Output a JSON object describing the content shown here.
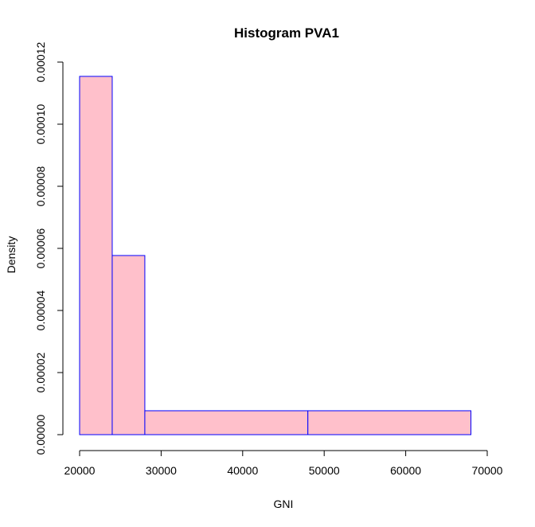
{
  "chart_data": {
    "type": "bar",
    "title": "Histogram PVA1",
    "xlabel": "GNI",
    "ylabel": "Density",
    "xlim": [
      20000,
      70000
    ],
    "ylim": [
      0,
      0.00012
    ],
    "x_ticks": [
      20000,
      30000,
      40000,
      50000,
      60000,
      70000
    ],
    "x_tick_labels": [
      "20000",
      "30000",
      "40000",
      "50000",
      "60000",
      "70000"
    ],
    "y_ticks": [
      0,
      2e-05,
      4e-05,
      6e-05,
      8e-05,
      0.0001,
      0.00012
    ],
    "y_tick_labels": [
      "0.00000",
      "0.00002",
      "0.00004",
      "0.00006",
      "0.00008",
      "0.00010",
      "0.00012"
    ],
    "bins": [
      {
        "x0": 20000,
        "x1": 24000,
        "density": 0.0001154
      },
      {
        "x0": 24000,
        "x1": 28000,
        "density": 5.77e-05
      },
      {
        "x0": 28000,
        "x1": 48000,
        "density": 7.7e-06
      },
      {
        "x0": 48000,
        "x1": 68000,
        "density": 7.7e-06
      }
    ],
    "bar_fill": "#ffc0cb",
    "bar_border": "#0000ff",
    "grid": false,
    "legend": "none"
  }
}
